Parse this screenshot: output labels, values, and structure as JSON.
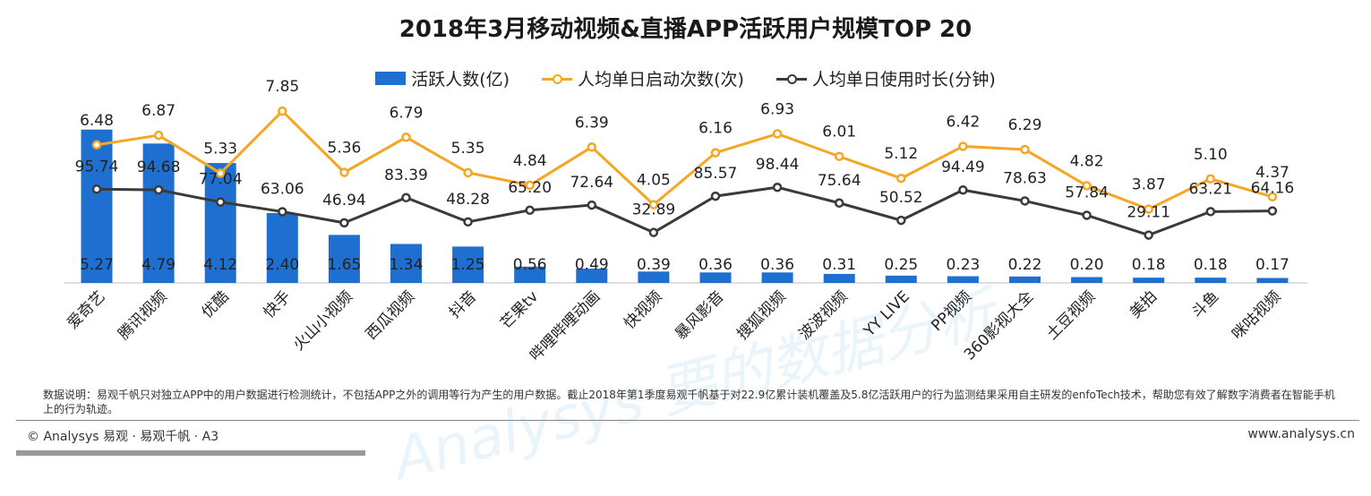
{
  "title": "2018年3月移动视频&直播APP活跃用户规模TOP 20",
  "legend": {
    "bar": "活跃人数(亿)",
    "orange": "人均单日启动次数(次)",
    "dark": "人均单日使用时长(分钟)"
  },
  "colors": {
    "bar": "#1f6fd0",
    "orange": "#f5a623",
    "dark": "#3a3a3a"
  },
  "chart_data": {
    "type": "bar",
    "categories": [
      "爱奇艺",
      "腾讯视频",
      "优酷",
      "快手",
      "火山小视频",
      "西瓜视频",
      "抖音",
      "芒果tv",
      "哔哩哔哩动画",
      "快视频",
      "暴风影音",
      "搜狐视频",
      "波波视频",
      "YY LIVE",
      "PP视频",
      "360影视大全",
      "土豆视频",
      "美拍",
      "斗鱼",
      "咪咕视频"
    ],
    "series": [
      {
        "name": "活跃人数(亿)",
        "type": "bar",
        "values": [
          5.27,
          4.79,
          4.12,
          2.4,
          1.65,
          1.34,
          1.25,
          0.56,
          0.49,
          0.39,
          0.36,
          0.36,
          0.31,
          0.25,
          0.23,
          0.22,
          0.2,
          0.18,
          0.18,
          0.17
        ]
      },
      {
        "name": "人均单日启动次数(次)",
        "type": "line",
        "values": [
          6.48,
          6.87,
          5.33,
          7.85,
          5.36,
          6.79,
          5.35,
          4.84,
          6.39,
          4.05,
          6.16,
          6.93,
          6.01,
          5.12,
          6.42,
          6.29,
          4.82,
          3.87,
          5.1,
          4.37
        ]
      },
      {
        "name": "人均单日使用时长(分钟)",
        "type": "line",
        "values": [
          95.74,
          94.68,
          77.04,
          63.06,
          46.94,
          83.39,
          48.28,
          65.2,
          72.64,
          32.89,
          85.57,
          98.44,
          75.64,
          50.52,
          94.49,
          78.63,
          57.84,
          29.11,
          63.21,
          64.16
        ]
      }
    ],
    "title": "2018年3月移动视频&直播APP活跃用户规模TOP 20",
    "legend_position": "top-center",
    "grid": false
  },
  "note": "数据说明：易观千帆只对独立APP中的用户数据进行检测统计，不包括APP之外的调用等行为产生的用户数据。截止2018年第1季度易观千帆基于对22.9亿累计装机覆盖及5.8亿活跃用户的行为监测结果采用自主研发的enfoTech技术，帮助您有效了解数字消费者在智能手机上的行为轨迹。",
  "footer": {
    "left": "© Analysys 易观 · 易观千帆 · A3",
    "right": "www.analysys.cn"
  },
  "watermark": "Analysys 要的数据分析"
}
